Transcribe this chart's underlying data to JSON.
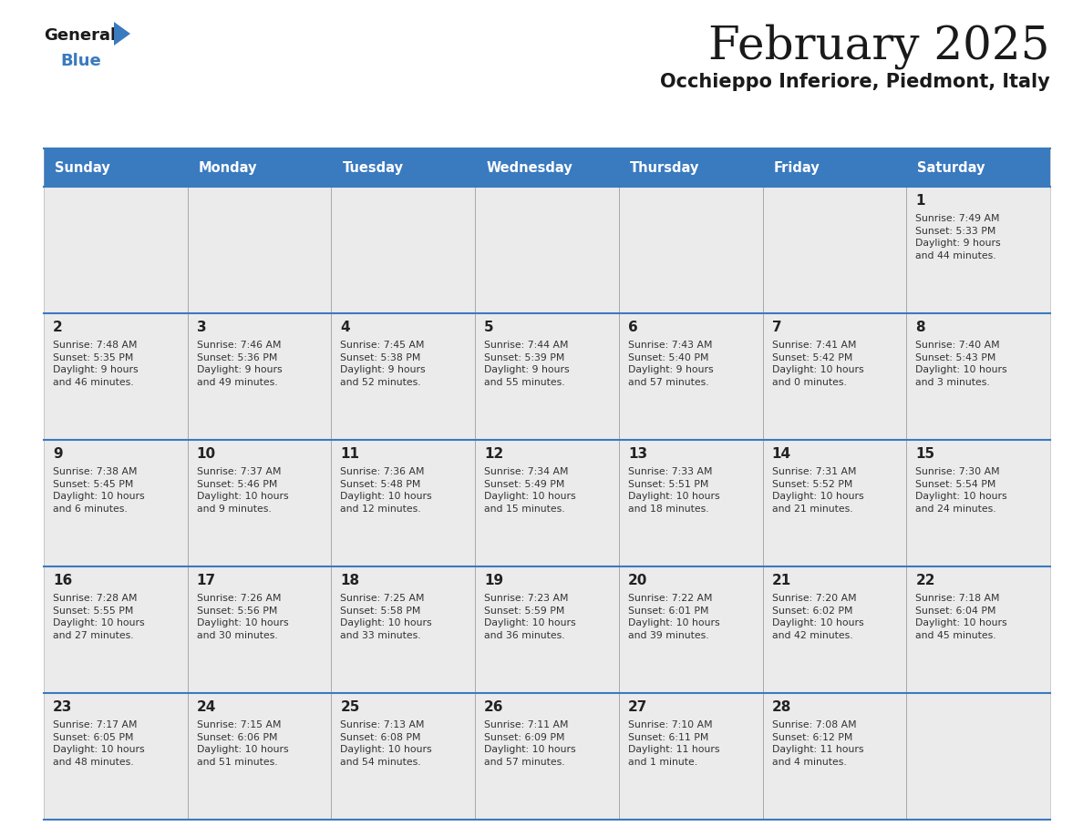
{
  "title": "February 2025",
  "subtitle": "Occhieppo Inferiore, Piedmont, Italy",
  "header_bg": "#3a7abf",
  "header_text": "#ffffff",
  "cell_bg": "#ebebeb",
  "border_color": "#3a7abf",
  "text_color": "#333333",
  "day_num_color": "#222222",
  "day_headers": [
    "Sunday",
    "Monday",
    "Tuesday",
    "Wednesday",
    "Thursday",
    "Friday",
    "Saturday"
  ],
  "weeks": [
    [
      {
        "day": "",
        "info": ""
      },
      {
        "day": "",
        "info": ""
      },
      {
        "day": "",
        "info": ""
      },
      {
        "day": "",
        "info": ""
      },
      {
        "day": "",
        "info": ""
      },
      {
        "day": "",
        "info": ""
      },
      {
        "day": "1",
        "info": "Sunrise: 7:49 AM\nSunset: 5:33 PM\nDaylight: 9 hours\nand 44 minutes."
      }
    ],
    [
      {
        "day": "2",
        "info": "Sunrise: 7:48 AM\nSunset: 5:35 PM\nDaylight: 9 hours\nand 46 minutes."
      },
      {
        "day": "3",
        "info": "Sunrise: 7:46 AM\nSunset: 5:36 PM\nDaylight: 9 hours\nand 49 minutes."
      },
      {
        "day": "4",
        "info": "Sunrise: 7:45 AM\nSunset: 5:38 PM\nDaylight: 9 hours\nand 52 minutes."
      },
      {
        "day": "5",
        "info": "Sunrise: 7:44 AM\nSunset: 5:39 PM\nDaylight: 9 hours\nand 55 minutes."
      },
      {
        "day": "6",
        "info": "Sunrise: 7:43 AM\nSunset: 5:40 PM\nDaylight: 9 hours\nand 57 minutes."
      },
      {
        "day": "7",
        "info": "Sunrise: 7:41 AM\nSunset: 5:42 PM\nDaylight: 10 hours\nand 0 minutes."
      },
      {
        "day": "8",
        "info": "Sunrise: 7:40 AM\nSunset: 5:43 PM\nDaylight: 10 hours\nand 3 minutes."
      }
    ],
    [
      {
        "day": "9",
        "info": "Sunrise: 7:38 AM\nSunset: 5:45 PM\nDaylight: 10 hours\nand 6 minutes."
      },
      {
        "day": "10",
        "info": "Sunrise: 7:37 AM\nSunset: 5:46 PM\nDaylight: 10 hours\nand 9 minutes."
      },
      {
        "day": "11",
        "info": "Sunrise: 7:36 AM\nSunset: 5:48 PM\nDaylight: 10 hours\nand 12 minutes."
      },
      {
        "day": "12",
        "info": "Sunrise: 7:34 AM\nSunset: 5:49 PM\nDaylight: 10 hours\nand 15 minutes."
      },
      {
        "day": "13",
        "info": "Sunrise: 7:33 AM\nSunset: 5:51 PM\nDaylight: 10 hours\nand 18 minutes."
      },
      {
        "day": "14",
        "info": "Sunrise: 7:31 AM\nSunset: 5:52 PM\nDaylight: 10 hours\nand 21 minutes."
      },
      {
        "day": "15",
        "info": "Sunrise: 7:30 AM\nSunset: 5:54 PM\nDaylight: 10 hours\nand 24 minutes."
      }
    ],
    [
      {
        "day": "16",
        "info": "Sunrise: 7:28 AM\nSunset: 5:55 PM\nDaylight: 10 hours\nand 27 minutes."
      },
      {
        "day": "17",
        "info": "Sunrise: 7:26 AM\nSunset: 5:56 PM\nDaylight: 10 hours\nand 30 minutes."
      },
      {
        "day": "18",
        "info": "Sunrise: 7:25 AM\nSunset: 5:58 PM\nDaylight: 10 hours\nand 33 minutes."
      },
      {
        "day": "19",
        "info": "Sunrise: 7:23 AM\nSunset: 5:59 PM\nDaylight: 10 hours\nand 36 minutes."
      },
      {
        "day": "20",
        "info": "Sunrise: 7:22 AM\nSunset: 6:01 PM\nDaylight: 10 hours\nand 39 minutes."
      },
      {
        "day": "21",
        "info": "Sunrise: 7:20 AM\nSunset: 6:02 PM\nDaylight: 10 hours\nand 42 minutes."
      },
      {
        "day": "22",
        "info": "Sunrise: 7:18 AM\nSunset: 6:04 PM\nDaylight: 10 hours\nand 45 minutes."
      }
    ],
    [
      {
        "day": "23",
        "info": "Sunrise: 7:17 AM\nSunset: 6:05 PM\nDaylight: 10 hours\nand 48 minutes."
      },
      {
        "day": "24",
        "info": "Sunrise: 7:15 AM\nSunset: 6:06 PM\nDaylight: 10 hours\nand 51 minutes."
      },
      {
        "day": "25",
        "info": "Sunrise: 7:13 AM\nSunset: 6:08 PM\nDaylight: 10 hours\nand 54 minutes."
      },
      {
        "day": "26",
        "info": "Sunrise: 7:11 AM\nSunset: 6:09 PM\nDaylight: 10 hours\nand 57 minutes."
      },
      {
        "day": "27",
        "info": "Sunrise: 7:10 AM\nSunset: 6:11 PM\nDaylight: 11 hours\nand 1 minute."
      },
      {
        "day": "28",
        "info": "Sunrise: 7:08 AM\nSunset: 6:12 PM\nDaylight: 11 hours\nand 4 minutes."
      },
      {
        "day": "",
        "info": ""
      }
    ]
  ],
  "logo_general_color": "#1a1a1a",
  "logo_blue_color": "#3a7abf",
  "logo_triangle_color": "#3a7abf"
}
